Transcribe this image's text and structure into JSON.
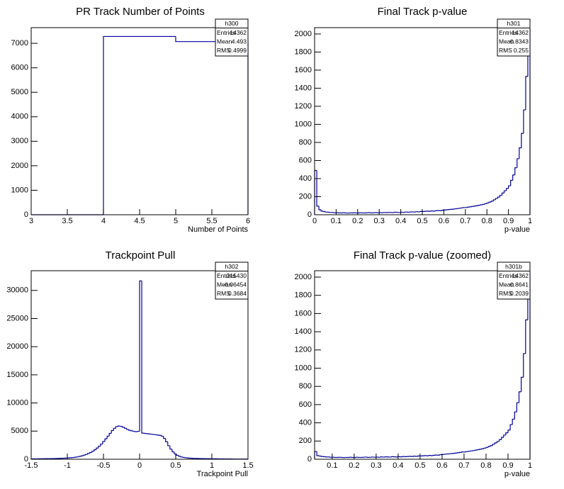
{
  "stats_labels": [
    "Entries",
    "Mean",
    "RMS"
  ],
  "chart_data": [
    {
      "type": "histogram",
      "title": "PR Track Number of Points",
      "x_label": "Number of Points",
      "color": "#000099",
      "bins": [
        3,
        4,
        5,
        6
      ],
      "values": [
        0,
        7280,
        7070
      ],
      "xlim": [
        3,
        6
      ],
      "ylim": [
        0,
        7640
      ],
      "xticks": [
        3,
        3.5,
        4,
        4.5,
        5,
        5.5,
        6
      ],
      "yticks": [
        0,
        1000,
        2000,
        3000,
        4000,
        5000,
        6000,
        7000
      ],
      "stats": {
        "name": "h300",
        "entries": 14362,
        "mean": 4.493,
        "rms": 0.4999
      }
    },
    {
      "type": "histogram",
      "title": "Final Track p-value",
      "x_label": "p-value",
      "color": "#000099",
      "bins": [
        0,
        0.01,
        0.02,
        0.03,
        0.04,
        0.05,
        0.06,
        0.07,
        0.08,
        0.09,
        0.1,
        0.11,
        0.12,
        0.13,
        0.14,
        0.15,
        0.16,
        0.17,
        0.18,
        0.19,
        0.2,
        0.21,
        0.22,
        0.23,
        0.24,
        0.25,
        0.26,
        0.27,
        0.28,
        0.29,
        0.3,
        0.31,
        0.32,
        0.33,
        0.34,
        0.35,
        0.36,
        0.37,
        0.38,
        0.39,
        0.4,
        0.41,
        0.42,
        0.43,
        0.44,
        0.45,
        0.46,
        0.47,
        0.48,
        0.49,
        0.5,
        0.51,
        0.52,
        0.53,
        0.54,
        0.55,
        0.56,
        0.57,
        0.58,
        0.59,
        0.6,
        0.61,
        0.62,
        0.63,
        0.64,
        0.65,
        0.66,
        0.67,
        0.68,
        0.69,
        0.7,
        0.71,
        0.72,
        0.73,
        0.74,
        0.75,
        0.76,
        0.77,
        0.78,
        0.79,
        0.8,
        0.81,
        0.82,
        0.83,
        0.84,
        0.85,
        0.86,
        0.87,
        0.88,
        0.89,
        0.9,
        0.91,
        0.92,
        0.93,
        0.94,
        0.95,
        0.96,
        0.97,
        0.98,
        0.99,
        1
      ],
      "values": [
        490,
        95,
        55,
        40,
        35,
        30,
        28,
        25,
        25,
        22,
        22,
        20,
        20,
        22,
        20,
        18,
        20,
        20,
        22,
        20,
        20,
        22,
        20,
        20,
        22,
        24,
        20,
        22,
        24,
        22,
        24,
        22,
        25,
        24,
        26,
        25,
        24,
        28,
        26,
        25,
        28,
        26,
        30,
        28,
        30,
        32,
        30,
        34,
        32,
        36,
        36,
        38,
        40,
        38,
        42,
        40,
        44,
        46,
        45,
        50,
        52,
        55,
        58,
        60,
        62,
        65,
        68,
        72,
        76,
        80,
        80,
        84,
        88,
        92,
        96,
        100,
        105,
        110,
        115,
        122,
        130,
        140,
        150,
        165,
        180,
        195,
        215,
        240,
        265,
        290,
        320,
        380,
        440,
        520,
        620,
        740,
        900,
        1160,
        1530,
        2050
      ],
      "xlim": [
        0,
        1
      ],
      "ylim": [
        0,
        2070
      ],
      "xticks": [
        0,
        0.1,
        0.2,
        0.3,
        0.4,
        0.5,
        0.6,
        0.7,
        0.8,
        0.9,
        1
      ],
      "yticks": [
        0,
        200,
        400,
        600,
        800,
        1000,
        1200,
        1400,
        1600,
        1800,
        2000
      ],
      "stats": {
        "name": "h301",
        "entries": 14362,
        "mean": 0.8343,
        "rms": 0.255
      }
    },
    {
      "type": "histogram",
      "title": "Trackpoint Pull",
      "x_label": "Trackpoint Pull",
      "color": "#000099",
      "bins": [
        -1.5,
        -1.47,
        -1.44,
        -1.41,
        -1.38,
        -1.35,
        -1.32,
        -1.29,
        -1.26,
        -1.23,
        -1.2,
        -1.17,
        -1.14,
        -1.11,
        -1.08,
        -1.05,
        -1.02,
        -0.99,
        -0.96,
        -0.93,
        -0.9,
        -0.87,
        -0.84,
        -0.81,
        -0.78,
        -0.75,
        -0.72,
        -0.69,
        -0.66,
        -0.63,
        -0.6,
        -0.57,
        -0.54,
        -0.51,
        -0.48,
        -0.45,
        -0.42,
        -0.39,
        -0.36,
        -0.33,
        -0.3,
        -0.27,
        -0.24,
        -0.21,
        -0.18,
        -0.15,
        -0.12,
        -0.09,
        -0.06,
        -0.03,
        0,
        0.03,
        0.06,
        0.09,
        0.12,
        0.15,
        0.18,
        0.21,
        0.24,
        0.27,
        0.3,
        0.33,
        0.36,
        0.39,
        0.42,
        0.45,
        0.48,
        0.51,
        0.54,
        0.57,
        0.6,
        0.63,
        0.66,
        0.69,
        0.72,
        0.75,
        0.78,
        0.81,
        0.84,
        0.87,
        0.9,
        0.93,
        0.96,
        0.99,
        1.02,
        1.05,
        1.08,
        1.11,
        1.14,
        1.17,
        1.2,
        1.23,
        1.26,
        1.29,
        1.32,
        1.35,
        1.38,
        1.41,
        1.44,
        1.47,
        1.5
      ],
      "values": [
        60,
        65,
        70,
        75,
        80,
        85,
        90,
        95,
        100,
        110,
        120,
        130,
        140,
        155,
        170,
        190,
        210,
        240,
        270,
        310,
        360,
        420,
        500,
        600,
        720,
        860,
        1020,
        1200,
        1420,
        1680,
        1980,
        2320,
        2700,
        3150,
        3620,
        4100,
        4600,
        5100,
        5500,
        5800,
        5900,
        5850,
        5700,
        5500,
        5300,
        5150,
        5050,
        4950,
        4900,
        4950,
        31700,
        4650,
        4600,
        4550,
        4500,
        4450,
        4400,
        4350,
        4300,
        4250,
        4100,
        3700,
        3100,
        2400,
        1800,
        1300,
        950,
        700,
        520,
        400,
        320,
        260,
        220,
        190,
        170,
        150,
        140,
        130,
        120,
        110,
        100,
        95,
        90,
        85,
        80,
        75,
        70,
        65,
        60,
        55,
        50,
        48,
        45,
        42,
        40,
        38,
        35,
        32,
        30,
        28
      ],
      "xlim": [
        -1.5,
        1.5
      ],
      "ylim": [
        0,
        33500
      ],
      "xticks": [
        -1.5,
        -1,
        -0.5,
        0,
        0.5,
        1,
        1.5
      ],
      "yticks": [
        0,
        5000,
        10000,
        15000,
        20000,
        25000,
        30000
      ],
      "stats": {
        "name": "h302",
        "entries": 215430,
        "mean": -0.06454,
        "rms": 0.3684
      }
    },
    {
      "type": "histogram",
      "title": "Final Track p-value (zoomed)",
      "x_label": "p-value",
      "color": "#000099",
      "bins": [
        0.02,
        0.03,
        0.04,
        0.05,
        0.06,
        0.07,
        0.08,
        0.09,
        0.1,
        0.11,
        0.12,
        0.13,
        0.14,
        0.15,
        0.16,
        0.17,
        0.18,
        0.19,
        0.2,
        0.21,
        0.22,
        0.23,
        0.24,
        0.25,
        0.26,
        0.27,
        0.28,
        0.29,
        0.3,
        0.31,
        0.32,
        0.33,
        0.34,
        0.35,
        0.36,
        0.37,
        0.38,
        0.39,
        0.4,
        0.41,
        0.42,
        0.43,
        0.44,
        0.45,
        0.46,
        0.47,
        0.48,
        0.49,
        0.5,
        0.51,
        0.52,
        0.53,
        0.54,
        0.55,
        0.56,
        0.57,
        0.58,
        0.59,
        0.6,
        0.61,
        0.62,
        0.63,
        0.64,
        0.65,
        0.66,
        0.67,
        0.68,
        0.69,
        0.7,
        0.71,
        0.72,
        0.73,
        0.74,
        0.75,
        0.76,
        0.77,
        0.78,
        0.79,
        0.8,
        0.81,
        0.82,
        0.83,
        0.84,
        0.85,
        0.86,
        0.87,
        0.88,
        0.89,
        0.9,
        0.91,
        0.92,
        0.93,
        0.94,
        0.95,
        0.96,
        0.97,
        0.98,
        0.99,
        1
      ],
      "values": [
        85,
        40,
        35,
        30,
        28,
        25,
        25,
        22,
        22,
        20,
        20,
        22,
        20,
        18,
        20,
        20,
        22,
        20,
        20,
        22,
        20,
        20,
        22,
        24,
        20,
        22,
        24,
        22,
        24,
        22,
        25,
        24,
        26,
        25,
        24,
        28,
        26,
        25,
        28,
        26,
        30,
        28,
        30,
        32,
        30,
        34,
        32,
        36,
        36,
        38,
        40,
        38,
        42,
        40,
        44,
        46,
        45,
        50,
        52,
        55,
        58,
        60,
        62,
        65,
        68,
        72,
        76,
        80,
        80,
        84,
        88,
        92,
        96,
        100,
        105,
        110,
        115,
        122,
        130,
        140,
        150,
        165,
        180,
        195,
        215,
        240,
        265,
        290,
        320,
        380,
        440,
        520,
        620,
        740,
        900,
        1160,
        1530,
        2050
      ],
      "xlim": [
        0.02,
        1
      ],
      "ylim": [
        0,
        2070
      ],
      "xticks": [
        0.1,
        0.2,
        0.3,
        0.4,
        0.5,
        0.6,
        0.7,
        0.8,
        0.9,
        1
      ],
      "yticks": [
        0,
        200,
        400,
        600,
        800,
        1000,
        1200,
        1400,
        1600,
        1800,
        2000
      ],
      "stats": {
        "name": "h301b",
        "entries": 14362,
        "mean": 0.8641,
        "rms": 0.2039
      }
    }
  ]
}
